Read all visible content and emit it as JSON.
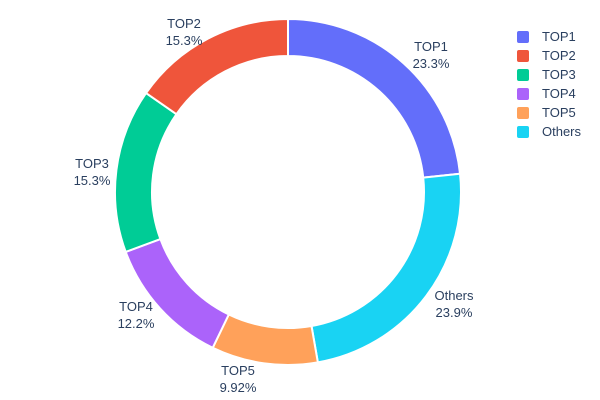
{
  "chart_data": {
    "type": "pie",
    "subtype": "donut",
    "title": "",
    "labels": [
      "TOP1",
      "TOP2",
      "TOP3",
      "TOP4",
      "TOP5",
      "Others"
    ],
    "values": [
      23.3,
      15.3,
      15.3,
      12.2,
      9.92,
      23.9
    ],
    "percent_labels": [
      "23.3%",
      "15.3%",
      "15.3%",
      "12.2%",
      "9.92%",
      "23.9%"
    ],
    "colors": [
      "#636EFA",
      "#EF553B",
      "#00CC96",
      "#AB63FA",
      "#FFA15A",
      "#19D3F3"
    ],
    "clockwise_order_from_top": [
      "TOP1",
      "Others",
      "TOP5",
      "TOP4",
      "TOP3",
      "TOP2"
    ],
    "hole": 0.786,
    "label_position": "outside",
    "text_color": "#2a3f5f",
    "background_color": "#ffffff",
    "slice_gap_color": "#ffffff",
    "legend": {
      "position": "right",
      "entries": [
        "TOP1",
        "TOP2",
        "TOP3",
        "TOP4",
        "TOP5",
        "Others"
      ]
    }
  }
}
